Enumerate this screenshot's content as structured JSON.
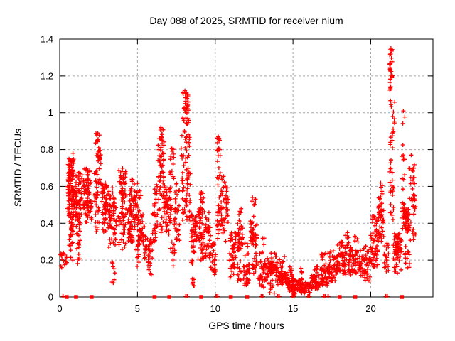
{
  "chart_data": {
    "type": "scatter",
    "title": "Day 088 of 2025, SRMTID for receiver nium",
    "xlabel": "GPS time / hours",
    "ylabel": "SRMTID / TECUs",
    "series_name": "SRMTID",
    "marker": "plus",
    "grid": true,
    "legend": "none",
    "xlim": [
      0,
      24
    ],
    "ylim": [
      0,
      1.4
    ],
    "xticks": [
      [
        0,
        "0"
      ],
      [
        5,
        "5"
      ],
      [
        10,
        "10"
      ],
      [
        15,
        "15"
      ],
      [
        20,
        "20"
      ]
    ],
    "yticks": [
      [
        0,
        "0"
      ],
      [
        0.2,
        "0.2"
      ],
      [
        0.4,
        "0.4"
      ],
      [
        0.6,
        "0.6"
      ],
      [
        0.8,
        "0.8"
      ],
      [
        1,
        "1"
      ],
      [
        1.2,
        "1.2"
      ],
      [
        1.4,
        "1.4"
      ]
    ],
    "colors": {
      "marker": "#ff0000",
      "grid": "#a8a8a8",
      "axis": "#000000",
      "background": "#ffffff",
      "text": "#000000"
    },
    "seed": 20250088,
    "clusters": [
      [
        0.05,
        0.3,
        0.15,
        0.26,
        12
      ],
      [
        0.3,
        0.5,
        0.17,
        0.24,
        6
      ],
      [
        0.5,
        0.9,
        0.55,
        0.75,
        70
      ],
      [
        0.5,
        0.95,
        0.42,
        0.58,
        40
      ],
      [
        0.55,
        0.9,
        0.28,
        0.45,
        20
      ],
      [
        0.6,
        0.85,
        0.2,
        0.3,
        6
      ],
      [
        1.0,
        1.45,
        0.5,
        0.68,
        45
      ],
      [
        1.0,
        1.4,
        0.35,
        0.5,
        25
      ],
      [
        1.05,
        1.35,
        0.25,
        0.35,
        10
      ],
      [
        1.1,
        1.3,
        0.17,
        0.24,
        5
      ],
      [
        1.5,
        2.05,
        0.48,
        0.64,
        55
      ],
      [
        1.55,
        1.95,
        0.62,
        0.7,
        12
      ],
      [
        1.6,
        2.05,
        0.4,
        0.48,
        15
      ],
      [
        2.3,
        2.65,
        0.68,
        0.89,
        30
      ],
      [
        2.2,
        2.7,
        0.5,
        0.68,
        25
      ],
      [
        2.25,
        2.6,
        0.35,
        0.5,
        12
      ],
      [
        2.7,
        3.05,
        0.45,
        0.62,
        40
      ],
      [
        2.75,
        3.0,
        0.35,
        0.45,
        12
      ],
      [
        3.05,
        3.65,
        0.37,
        0.52,
        45
      ],
      [
        3.1,
        3.55,
        0.52,
        0.6,
        10
      ],
      [
        3.15,
        3.6,
        0.25,
        0.37,
        12
      ],
      [
        3.35,
        3.6,
        0.07,
        0.2,
        8
      ],
      [
        3.8,
        4.25,
        0.52,
        0.7,
        40
      ],
      [
        3.75,
        4.3,
        0.38,
        0.52,
        25
      ],
      [
        3.8,
        4.25,
        0.25,
        0.38,
        12
      ],
      [
        4.35,
        5.0,
        0.4,
        0.58,
        55
      ],
      [
        4.4,
        5.05,
        0.28,
        0.4,
        25
      ],
      [
        4.45,
        4.8,
        0.58,
        0.64,
        6
      ],
      [
        4.8,
        5.1,
        0.16,
        0.28,
        10
      ],
      [
        5.0,
        5.5,
        0.28,
        0.45,
        40
      ],
      [
        5.0,
        5.25,
        0.45,
        0.62,
        10
      ],
      [
        5.45,
        5.95,
        0.18,
        0.32,
        35
      ],
      [
        5.6,
        5.9,
        0.12,
        0.18,
        6
      ],
      [
        5.95,
        6.3,
        0.3,
        0.5,
        25
      ],
      [
        6.05,
        6.3,
        0.5,
        0.62,
        10
      ],
      [
        6.3,
        6.7,
        0.62,
        0.92,
        45
      ],
      [
        6.35,
        6.75,
        0.45,
        0.62,
        20
      ],
      [
        6.4,
        6.7,
        0.35,
        0.45,
        8
      ],
      [
        6.75,
        7.2,
        0.45,
        0.6,
        35
      ],
      [
        6.8,
        7.15,
        0.32,
        0.45,
        15
      ],
      [
        7.05,
        7.35,
        0.6,
        0.84,
        14
      ],
      [
        7.1,
        7.4,
        0.14,
        0.3,
        10
      ],
      [
        7.35,
        7.75,
        0.3,
        0.5,
        25
      ],
      [
        7.4,
        7.7,
        0.5,
        0.65,
        10
      ],
      [
        7.9,
        8.3,
        0.93,
        1.12,
        38
      ],
      [
        7.8,
        8.35,
        0.7,
        0.93,
        25
      ],
      [
        7.8,
        8.4,
        0.52,
        0.7,
        30
      ],
      [
        7.85,
        8.45,
        0.4,
        0.52,
        15
      ],
      [
        8.4,
        8.75,
        0.3,
        0.45,
        30
      ],
      [
        8.45,
        8.7,
        0.13,
        0.28,
        12
      ],
      [
        8.5,
        8.65,
        0.05,
        0.12,
        6
      ],
      [
        8.75,
        9.3,
        0.3,
        0.48,
        40
      ],
      [
        8.95,
        9.25,
        0.48,
        0.58,
        10
      ],
      [
        8.8,
        9.25,
        0.2,
        0.3,
        12
      ],
      [
        9.3,
        9.7,
        0.2,
        0.38,
        30
      ],
      [
        9.35,
        9.6,
        0.38,
        0.46,
        6
      ],
      [
        9.7,
        10.05,
        0.12,
        0.3,
        30
      ],
      [
        10.1,
        10.3,
        0.78,
        0.87,
        12
      ],
      [
        10.1,
        10.35,
        0.45,
        0.78,
        18
      ],
      [
        10.1,
        10.4,
        0.3,
        0.45,
        12
      ],
      [
        10.35,
        10.85,
        0.44,
        0.6,
        35
      ],
      [
        10.4,
        10.7,
        0.6,
        0.66,
        5
      ],
      [
        10.4,
        10.9,
        0.3,
        0.44,
        15
      ],
      [
        10.85,
        11.35,
        0.17,
        0.35,
        35
      ],
      [
        10.9,
        11.3,
        0.1,
        0.17,
        10
      ],
      [
        11.35,
        11.8,
        0.25,
        0.4,
        30
      ],
      [
        11.5,
        11.7,
        0.4,
        0.48,
        6
      ],
      [
        11.4,
        11.85,
        0.08,
        0.2,
        15
      ],
      [
        11.85,
        12.25,
        0.05,
        0.18,
        25
      ],
      [
        11.9,
        12.2,
        0.2,
        0.3,
        6
      ],
      [
        12.25,
        12.7,
        0.26,
        0.42,
        35
      ],
      [
        12.3,
        12.6,
        0.42,
        0.55,
        8
      ],
      [
        12.3,
        12.75,
        0.12,
        0.26,
        15
      ],
      [
        12.75,
        13.25,
        0.05,
        0.2,
        35
      ],
      [
        12.8,
        13.15,
        0.22,
        0.33,
        6
      ],
      [
        13.25,
        14.0,
        0.09,
        0.19,
        60
      ],
      [
        13.4,
        13.9,
        0.02,
        0.09,
        10
      ],
      [
        13.3,
        13.95,
        0.19,
        0.24,
        8
      ],
      [
        14.0,
        14.65,
        0.06,
        0.14,
        50
      ],
      [
        14.1,
        14.5,
        0.15,
        0.22,
        8
      ],
      [
        14.65,
        15.45,
        0.03,
        0.1,
        60
      ],
      [
        14.8,
        14.95,
        0.11,
        0.17,
        8
      ],
      [
        15.0,
        15.2,
        0.01,
        0.03,
        6
      ],
      [
        15.45,
        16.15,
        0.02,
        0.08,
        55
      ],
      [
        15.5,
        15.6,
        0.09,
        0.17,
        6
      ],
      [
        16.15,
        16.7,
        0.04,
        0.12,
        45
      ],
      [
        16.3,
        16.65,
        0.13,
        0.18,
        8
      ],
      [
        16.7,
        17.3,
        0.06,
        0.16,
        45
      ],
      [
        16.8,
        17.25,
        0.17,
        0.24,
        10
      ],
      [
        17.3,
        17.75,
        0.08,
        0.18,
        35
      ],
      [
        17.35,
        17.7,
        0.19,
        0.27,
        8
      ],
      [
        17.75,
        18.3,
        0.12,
        0.24,
        45
      ],
      [
        17.85,
        18.25,
        0.24,
        0.3,
        10
      ],
      [
        18.3,
        18.75,
        0.12,
        0.28,
        35
      ],
      [
        18.35,
        18.6,
        0.28,
        0.35,
        8
      ],
      [
        18.75,
        19.35,
        0.13,
        0.26,
        40
      ],
      [
        18.9,
        19.2,
        0.27,
        0.33,
        6
      ],
      [
        19.35,
        19.95,
        0.08,
        0.22,
        40
      ],
      [
        19.5,
        19.9,
        0.22,
        0.28,
        6
      ],
      [
        19.95,
        20.45,
        0.16,
        0.35,
        40
      ],
      [
        20.1,
        20.45,
        0.35,
        0.44,
        12
      ],
      [
        20.45,
        20.85,
        0.3,
        0.47,
        40
      ],
      [
        20.5,
        20.8,
        0.47,
        0.56,
        12
      ],
      [
        20.55,
        20.75,
        0.56,
        0.62,
        5
      ],
      [
        20.85,
        21.15,
        0.13,
        0.3,
        20
      ],
      [
        21.2,
        21.4,
        1.13,
        1.35,
        28
      ],
      [
        21.22,
        21.42,
        0.62,
        1.13,
        20
      ],
      [
        21.38,
        21.55,
        0.85,
        1.1,
        8
      ],
      [
        21.25,
        21.5,
        0.42,
        0.62,
        15
      ],
      [
        21.45,
        22.0,
        0.13,
        0.35,
        45
      ],
      [
        21.55,
        21.9,
        0.22,
        0.33,
        20
      ],
      [
        22.0,
        22.2,
        0.5,
        1.01,
        15
      ],
      [
        22.0,
        22.25,
        0.35,
        0.5,
        12
      ],
      [
        22.1,
        22.5,
        0.35,
        0.48,
        45
      ],
      [
        22.15,
        22.5,
        0.15,
        0.3,
        12
      ],
      [
        22.45,
        22.85,
        0.5,
        0.74,
        25
      ],
      [
        22.5,
        22.9,
        0.3,
        0.5,
        15
      ]
    ],
    "highlight_points": [
      [
        0.85,
        0.78
      ],
      [
        2.45,
        0.89
      ],
      [
        6.5,
        0.92
      ],
      [
        8.05,
        1.12
      ],
      [
        10.2,
        0.87
      ],
      [
        21.3,
        1.35
      ],
      [
        22.1,
        1.01
      ],
      [
        22.6,
        0.77
      ]
    ],
    "zero_squares": [
      0.45,
      1.05,
      2.05,
      6.1,
      7.05,
      9.1,
      11.0,
      12.05,
      18.0,
      19.0,
      22.0
    ],
    "zero_ticks": [
      0.2,
      8.1,
      8.2,
      10.05,
      10.15,
      12.95,
      13.05,
      14.0,
      14.1,
      14.95,
      15.05,
      15.95,
      16.05,
      16.95,
      17.05,
      17.25,
      20.95,
      21.05
    ]
  }
}
